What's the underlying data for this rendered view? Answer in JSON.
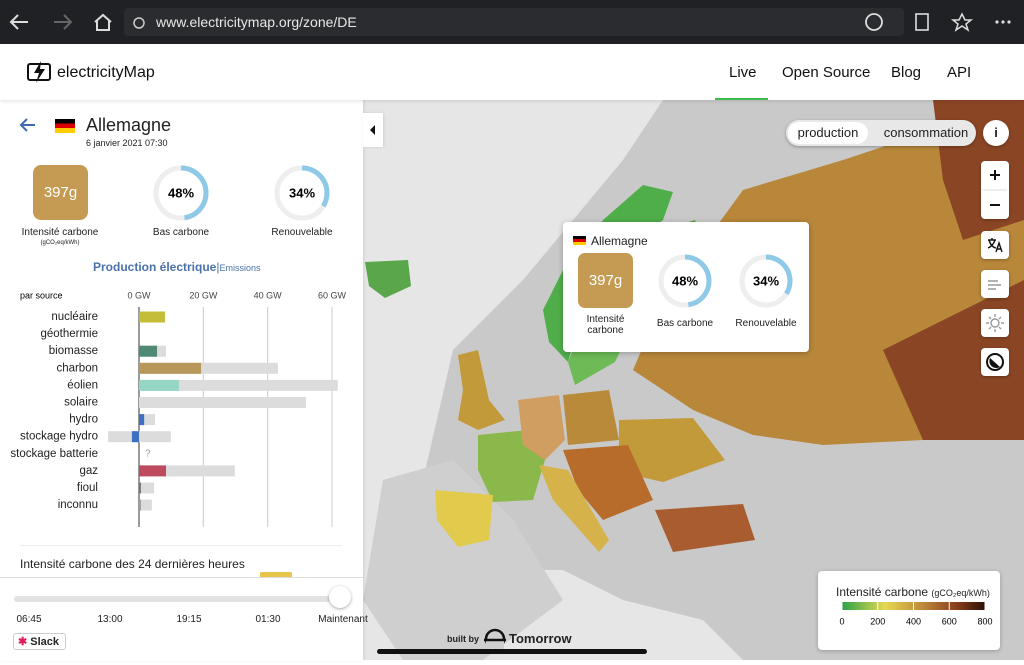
{
  "browser": {
    "url": "www.electricitymap.org/zone/DE"
  },
  "nav": {
    "brand": "electricityMap",
    "links": [
      "Live",
      "Open Source",
      "Blog",
      "API"
    ]
  },
  "zone": {
    "name": "Allemagne",
    "date": "6 janvier 2021 07:30",
    "carbon_intensity": {
      "value": 397,
      "label": "397",
      "unit": "g",
      "title": "Intensité carbone",
      "unit_label": "(gCO₂eq/kWh)"
    },
    "low_carbon": {
      "value": 48,
      "label": "48%",
      "title": "Bas carbone"
    },
    "renewable": {
      "value": 34,
      "label": "34%",
      "title": "Renouvelable"
    }
  },
  "tabs": {
    "active": "Production électrique",
    "separator": "|",
    "other": "Emissions"
  },
  "production": {
    "by_label": "par source",
    "xlim": [
      0,
      60
    ],
    "xticks": [
      {
        "value": 0,
        "label": "0 GW"
      },
      {
        "value": 20,
        "label": "20 GW"
      },
      {
        "value": 40,
        "label": "40 GW"
      },
      {
        "value": 60,
        "label": "60 GW"
      }
    ],
    "categories": [
      "nucléaire",
      "géothermie",
      "biomasse",
      "charbon",
      "éolien",
      "solaire",
      "hydro",
      "stockage hydro",
      "stockage batterie",
      "gaz",
      "fioul",
      "inconnu"
    ],
    "values": [
      8.1,
      0,
      5.6,
      19.3,
      12.4,
      0,
      1.6,
      -2.2,
      null,
      8.4,
      0.6,
      0.6
    ],
    "capacity_min": [
      0,
      0,
      0,
      0,
      0,
      0,
      0,
      -9.6,
      null,
      0,
      0,
      0
    ],
    "capacity": [
      8.1,
      0,
      8.4,
      43.2,
      61.8,
      51.9,
      5.0,
      9.9,
      null,
      29.8,
      4.7,
      4.0
    ],
    "colors": [
      "#c4bd3a",
      "#b9a9c9",
      "#4f8a74",
      "#b8975a",
      "#95d6c6",
      "#f5cf4a",
      "#3f6fc3",
      "#3f6fc3",
      "#9bb",
      "#bd4a5e",
      "#777777",
      "#9e9e9e"
    ],
    "missing_label": "?"
  },
  "history_title": "Intensité carbone des 24 dernières heures",
  "timeline": {
    "labels": [
      "06:45",
      "13:00",
      "19:15",
      "01:30",
      "Maintenant"
    ]
  },
  "slack": "Slack",
  "map": {
    "toggle": [
      "production",
      "consommation"
    ],
    "info": "i",
    "tooltip": {
      "name": "Allemagne",
      "intensity": {
        "value": 397,
        "label": "397",
        "unit": "g"
      },
      "intensity_title": "Intensité carbone",
      "low_carbon": {
        "value": 48,
        "label": "48%"
      },
      "low_carbon_title": "Bas carbone",
      "renewable": {
        "value": 34,
        "label": "34%"
      },
      "renewable_title": "Renouvelable"
    },
    "legend": {
      "title": "Intensité carbone",
      "unit": "(gCO₂eq/kWh)",
      "range": [
        0,
        800
      ],
      "ticks": [
        0,
        200,
        400,
        600,
        800
      ]
    },
    "credit": {
      "prefix": "built by",
      "name": "Tomorrow"
    }
  }
}
